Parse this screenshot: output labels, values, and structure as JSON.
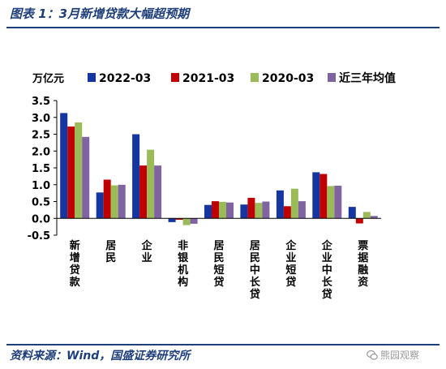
{
  "header": {
    "title": "图表 1：3月新增贷款大幅超预期"
  },
  "footer": {
    "source": "资料来源：Wind，国盛证券研究所",
    "watermark": "熊园观察"
  },
  "colors": {
    "s2022": "#1535a0",
    "s2021": "#c00000",
    "s2020": "#9bbb59",
    "avg": "#8064a2",
    "brand": "#1f3f7a"
  },
  "chart_data": {
    "type": "bar",
    "unit_label": "万亿元",
    "categories": [
      "新增贷款",
      "居民",
      "企业",
      "非银机构",
      "居民短贷",
      "居民中长贷",
      "企业短贷",
      "企业中长贷",
      "票据融资"
    ],
    "series": [
      {
        "name": "2022-03",
        "values": [
          3.13,
          0.77,
          2.5,
          -0.11,
          0.4,
          0.41,
          0.83,
          1.37,
          0.34
        ]
      },
      {
        "name": "2021-03",
        "values": [
          2.73,
          1.15,
          1.57,
          -0.04,
          0.51,
          0.61,
          0.36,
          1.32,
          -0.15
        ]
      },
      {
        "name": "2020-03",
        "values": [
          2.85,
          0.98,
          2.04,
          -0.2,
          0.49,
          0.46,
          0.88,
          0.96,
          0.19
        ]
      },
      {
        "name": "近三年均值",
        "values": [
          2.42,
          1.0,
          1.57,
          -0.16,
          0.47,
          0.5,
          0.51,
          0.97,
          0.07
        ]
      }
    ],
    "ylim": [
      -0.5,
      3.5
    ],
    "yticks": [
      "3.5",
      "3.0",
      "2.5",
      "2.0",
      "1.5",
      "1.0",
      "0.5",
      "0.0",
      "-0.5"
    ],
    "legend_position": "top",
    "grid": false
  }
}
